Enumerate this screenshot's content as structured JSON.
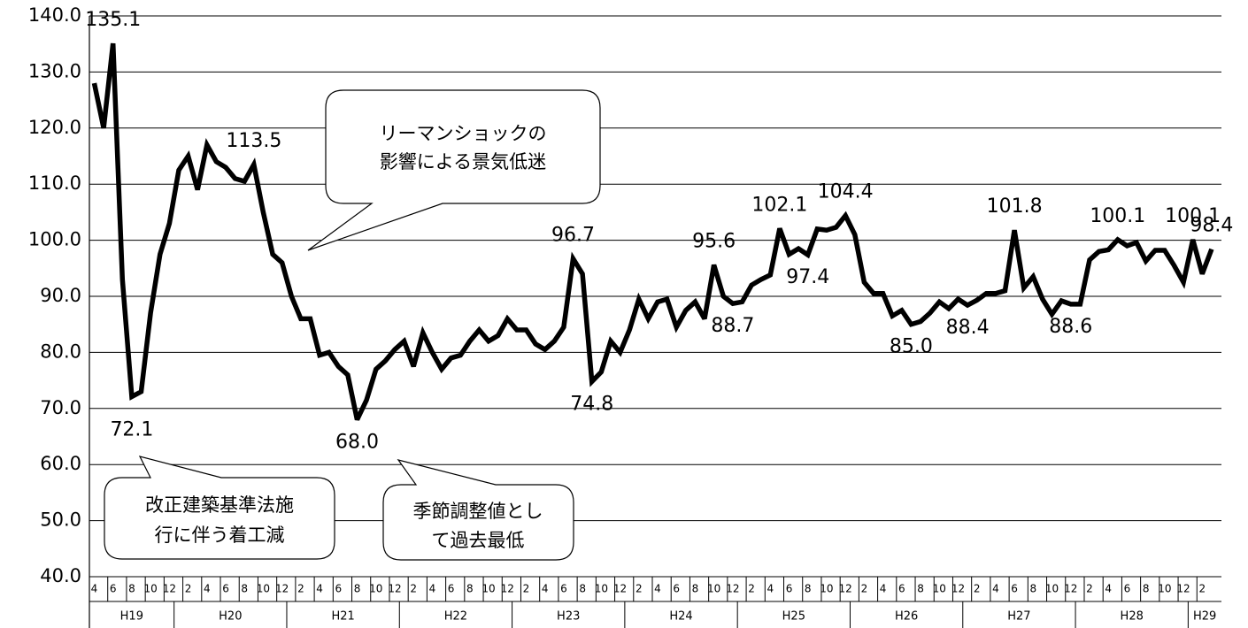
{
  "chart_data": {
    "type": "line",
    "color": "#000000",
    "grid": true,
    "ylim": [
      40,
      140
    ],
    "yticks": [
      {
        "value": 40,
        "label": "40.0"
      },
      {
        "value": 50,
        "label": "50.0"
      },
      {
        "value": 60,
        "label": "60.0"
      },
      {
        "value": 70,
        "label": "70.0"
      },
      {
        "value": 80,
        "label": "80.0"
      },
      {
        "value": 90,
        "label": "90.0"
      },
      {
        "value": 100,
        "label": "100.0"
      },
      {
        "value": 110,
        "label": "110.0"
      },
      {
        "value": 120,
        "label": "120.0"
      },
      {
        "value": 130,
        "label": "130.0"
      },
      {
        "value": 140,
        "label": "140.0"
      }
    ],
    "categories": [
      "4",
      null,
      "6",
      null,
      "8",
      null,
      "10",
      null,
      "12",
      null,
      "2",
      null,
      "4",
      null,
      "6",
      null,
      "8",
      null,
      "10",
      null,
      "12",
      null,
      "2",
      null,
      "4",
      null,
      "6",
      null,
      "8",
      null,
      "10",
      null,
      "12",
      null,
      "2",
      null,
      "4",
      null,
      "6",
      null,
      "8",
      null,
      "10",
      null,
      "12",
      null,
      "2",
      null,
      "4",
      null,
      "6",
      null,
      "8",
      null,
      "10",
      null,
      "12",
      null,
      "2",
      null,
      "4",
      null,
      "6",
      null,
      "8",
      null,
      "10",
      null,
      "12",
      null,
      "2",
      null,
      "4",
      null,
      "6",
      null,
      "8",
      null,
      "10",
      null,
      "12",
      null,
      "2",
      null,
      "4",
      null,
      "6",
      null,
      "8",
      null,
      "10",
      null,
      "12",
      null,
      "2",
      null,
      "4",
      null,
      "6",
      null,
      "8",
      null,
      "10",
      null,
      "12",
      null,
      "2",
      null,
      "4",
      null,
      "6",
      null,
      "8",
      null,
      "10",
      null,
      "12",
      null,
      "2",
      null
    ],
    "year_labels": [
      "H19",
      "H20",
      "H21",
      "H22",
      "H23",
      "H24",
      "H25",
      "H26",
      "H27",
      "H28",
      "H29"
    ],
    "values": [
      128,
      120,
      135.1,
      93,
      72.1,
      73,
      87,
      97.5,
      103,
      112.5,
      115,
      109,
      117,
      114,
      113,
      111,
      110.5,
      113.5,
      105,
      97.5,
      96,
      90,
      86,
      86,
      79.5,
      80,
      77.5,
      76,
      68,
      71.5,
      77,
      78.5,
      80.5,
      82,
      77.5,
      83.5,
      80,
      77,
      79,
      79.5,
      82,
      84,
      82,
      83,
      86,
      84,
      84,
      81.5,
      80.5,
      82,
      84.5,
      96.7,
      94,
      74.8,
      76.5,
      82,
      80,
      84,
      89.5,
      86,
      89,
      89.5,
      84.5,
      87.5,
      89,
      86,
      95.6,
      90,
      88.7,
      89,
      92,
      93,
      93.8,
      102.1,
      97.5,
      98.5,
      97.4,
      102,
      101.8,
      102.3,
      104.4,
      101,
      92.5,
      90.5,
      90.5,
      86.5,
      87.5,
      85,
      85.5,
      87,
      89,
      87.8,
      89.5,
      88.4,
      89.3,
      90.5,
      90.5,
      91,
      101.8,
      91.5,
      93.5,
      89.5,
      86.8,
      89.2,
      88.6,
      88.6,
      96.5,
      98,
      98.3,
      100.1,
      99,
      99.6,
      96.3,
      98.2,
      98.2,
      95.5,
      92.5,
      100.1,
      94,
      98.4
    ],
    "value_labels": [
      null,
      null,
      "135.1",
      null,
      "72.1",
      null,
      null,
      null,
      null,
      null,
      null,
      null,
      null,
      null,
      null,
      null,
      null,
      "113.5",
      null,
      null,
      null,
      null,
      null,
      null,
      null,
      null,
      null,
      null,
      "68.0",
      null,
      null,
      null,
      null,
      null,
      null,
      null,
      null,
      null,
      null,
      null,
      null,
      null,
      null,
      null,
      null,
      null,
      null,
      null,
      null,
      null,
      null,
      "96.7",
      null,
      "74.8",
      null,
      null,
      null,
      null,
      null,
      null,
      null,
      null,
      null,
      null,
      null,
      null,
      "95.6",
      null,
      "88.7",
      null,
      null,
      null,
      null,
      "102.1",
      null,
      null,
      "97.4",
      null,
      null,
      null,
      "104.4",
      null,
      null,
      null,
      null,
      null,
      null,
      "85.0",
      null,
      null,
      null,
      null,
      null,
      "88.4",
      null,
      null,
      null,
      null,
      "101.8",
      null,
      null,
      null,
      null,
      null,
      "88.6",
      null,
      null,
      null,
      null,
      "100.1",
      null,
      null,
      null,
      null,
      null,
      null,
      null,
      "100.1",
      null,
      "98.4"
    ],
    "annotations": [
      {
        "lines": [
          "リーマンショックの",
          "影響による景気低迷"
        ]
      },
      {
        "lines": [
          "改正建築基準法施",
          "行に伴う着工減"
        ]
      },
      {
        "lines": [
          "季節調整値とし",
          "て過去最低"
        ]
      }
    ]
  }
}
